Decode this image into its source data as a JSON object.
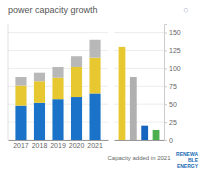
{
  "chart_data": [
    {
      "type": "bar",
      "title": "power capacity growth",
      "stacked": true,
      "categories": [
        "2017",
        "2018",
        "2019",
        "2020",
        "2021"
      ],
      "series": [
        {
          "color": "#1a73c8",
          "values": [
            48,
            52,
            57,
            60,
            65
          ]
        },
        {
          "color": "#e8c830",
          "values": [
            28,
            30,
            30,
            42,
            50
          ]
        },
        {
          "color": "#b8b8b8",
          "values": [
            12,
            12,
            15,
            15,
            25
          ]
        }
      ],
      "ylim": [
        0,
        162
      ],
      "yticks": [
        0,
        25,
        50,
        75,
        100,
        125,
        150
      ],
      "grid": true,
      "tick_labels": "x",
      "annotations": [
        "○",
        "RENEWA\nBLE\nENERGY"
      ]
    },
    {
      "type": "bar",
      "xlabel": "Capacity added in 2021",
      "categories": [
        null,
        null,
        null,
        null
      ],
      "values": [
        130,
        88,
        20,
        14
      ],
      "colors": [
        "#e8c830",
        "#b0b0b0",
        "#1565c0",
        "#4caf50"
      ],
      "ylim": [
        0,
        162
      ],
      "yticks": [
        0,
        25,
        50,
        75,
        100,
        125,
        150
      ],
      "grid": true,
      "tick_labels": "y"
    }
  ]
}
